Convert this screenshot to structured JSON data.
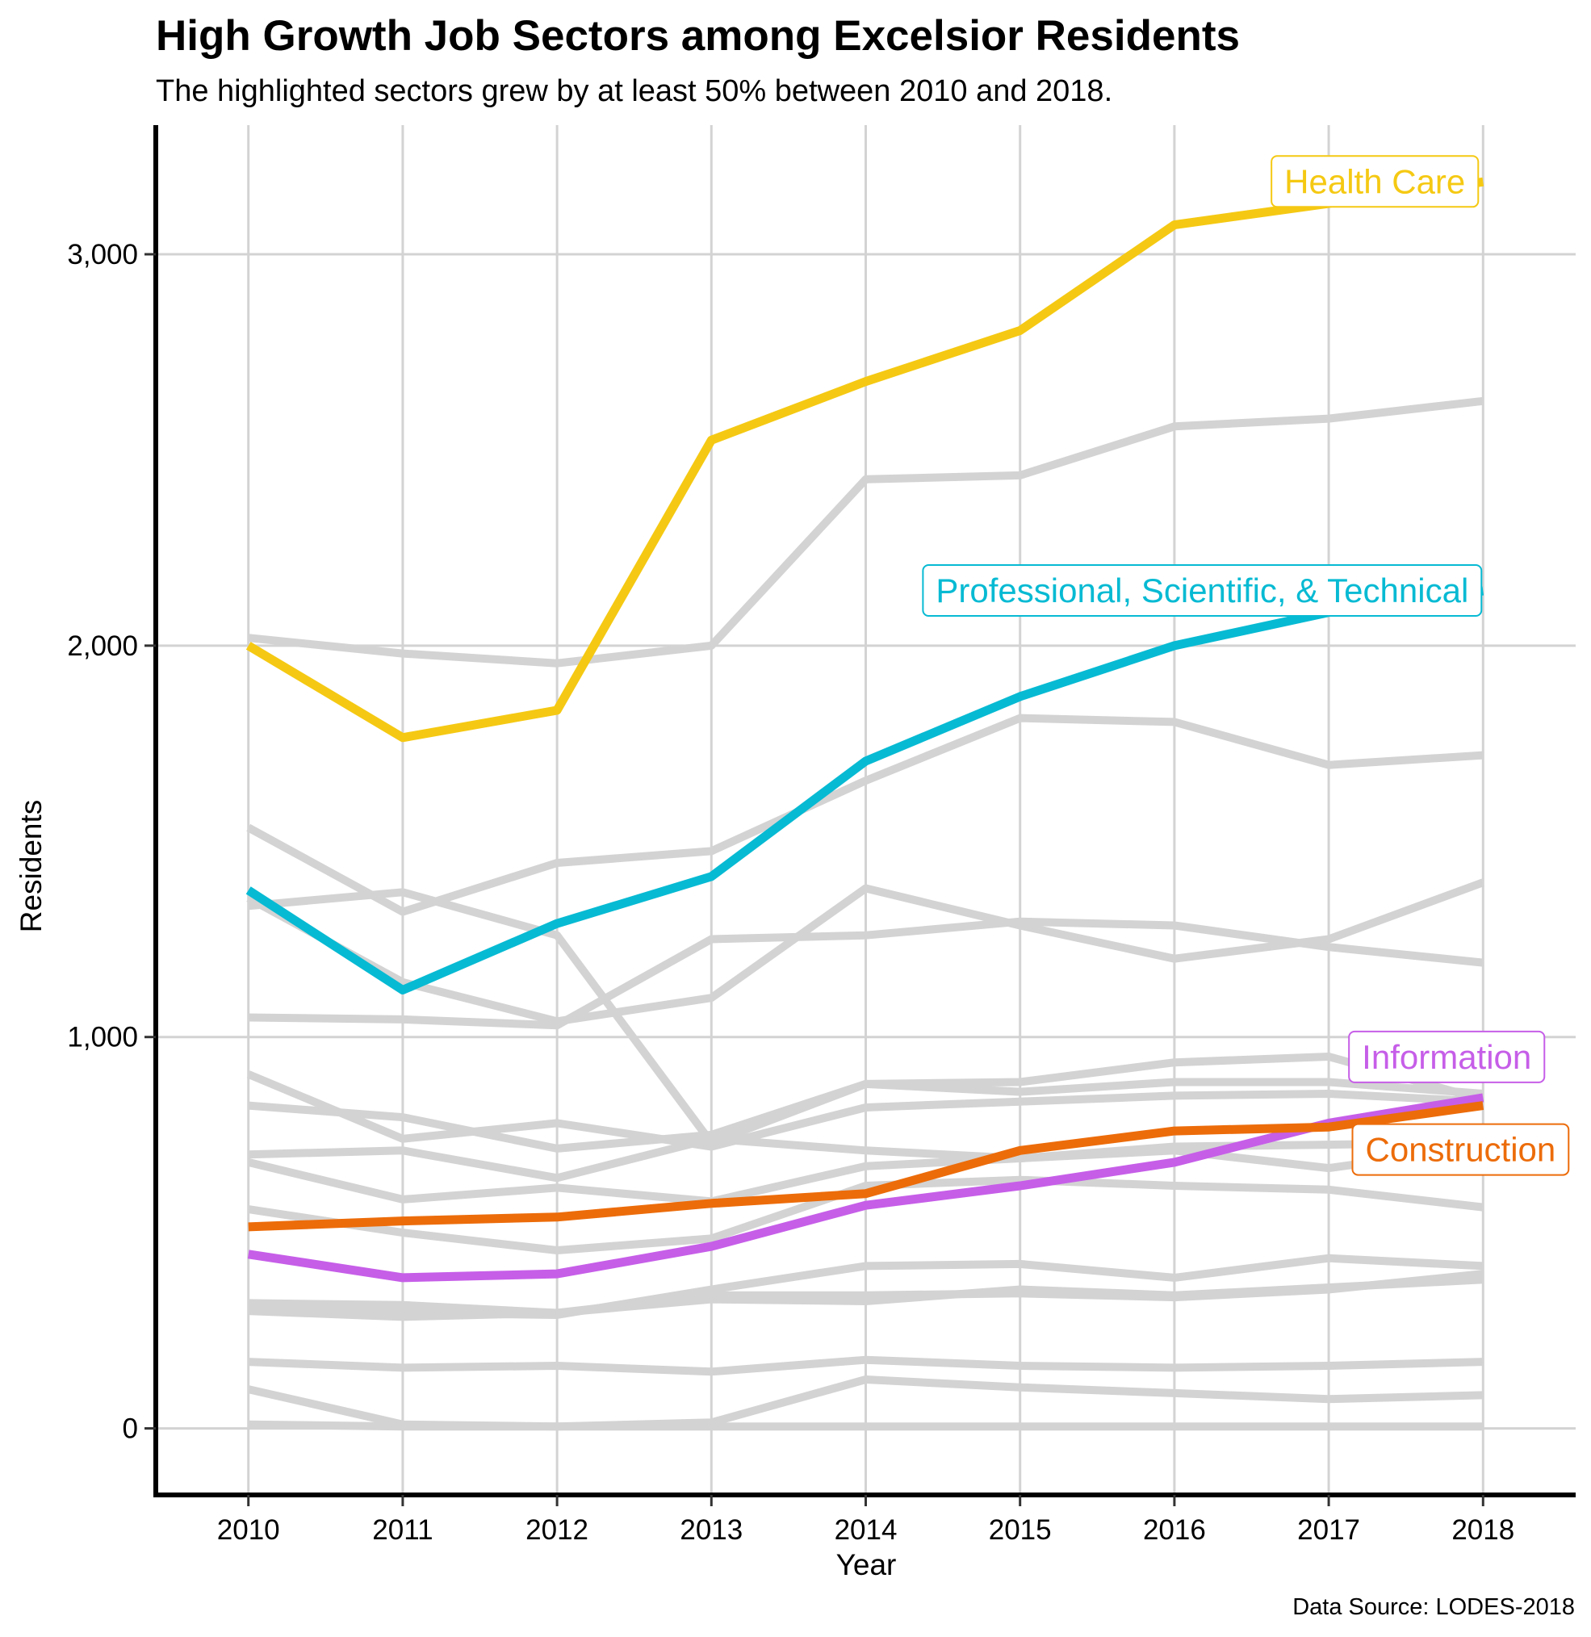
{
  "chart_data": {
    "type": "line",
    "title": "High Growth Job Sectors among Excelsior Residents",
    "subtitle": "The highlighted sectors grew by at least 50% between 2010 and 2018.",
    "caption": "Data Source: LODES-2018",
    "xlabel": "Year",
    "ylabel": "Residents",
    "x": [
      2010,
      2011,
      2012,
      2013,
      2014,
      2015,
      2016,
      2017,
      2018
    ],
    "xlim": [
      2009.4,
      2018.6
    ],
    "ylim": [
      -170,
      3330
    ],
    "y_ticks": [
      0,
      1000,
      2000,
      3000
    ],
    "y_tick_labels": [
      "0",
      "1,000",
      "2,000",
      "3,000"
    ],
    "grid": true,
    "colors": {
      "background_series": "#d3d3d3",
      "gridline": "#d3d3d3",
      "axis": "#000000"
    },
    "highlighted_series": [
      {
        "name": "Health Care",
        "color": "#f5c913",
        "values": [
          2000,
          1765,
          1835,
          2525,
          2675,
          2805,
          3075,
          3130,
          3185
        ]
      },
      {
        "name": "Professional, Scientific, & Technical",
        "color": "#07bad3",
        "values": [
          1375,
          1120,
          1290,
          1410,
          1705,
          1870,
          2000,
          2085,
          2140
        ]
      },
      {
        "name": "Information",
        "color": "#c65ee8",
        "values": [
          445,
          385,
          395,
          465,
          570,
          620,
          680,
          780,
          845
        ]
      },
      {
        "name": "Construction",
        "color": "#ec6c0a",
        "values": [
          515,
          530,
          540,
          575,
          600,
          710,
          760,
          770,
          825
        ]
      }
    ],
    "background_series": [
      {
        "values": [
          2020,
          1980,
          1955,
          2000,
          2425,
          2435,
          2560,
          2580,
          2625
        ]
      },
      {
        "values": [
          1535,
          1320,
          1445,
          1475,
          1655,
          1815,
          1805,
          1695,
          1720
        ]
      },
      {
        "values": [
          1335,
          1370,
          1260,
          730,
          880,
          885,
          935,
          950,
          840
        ]
      },
      {
        "values": [
          1355,
          1140,
          1040,
          1100,
          1380,
          1285,
          1200,
          1250,
          1395
        ]
      },
      {
        "values": [
          1050,
          1045,
          1030,
          1250,
          1260,
          1295,
          1285,
          1230,
          1190
        ]
      },
      {
        "values": [
          905,
          740,
          780,
          720,
          820,
          835,
          850,
          855,
          835
        ]
      },
      {
        "values": [
          825,
          795,
          715,
          750,
          880,
          860,
          885,
          885,
          855
        ]
      },
      {
        "values": [
          700,
          710,
          640,
          740,
          710,
          690,
          710,
          665,
          720
        ]
      },
      {
        "values": [
          680,
          585,
          615,
          580,
          670,
          690,
          720,
          725,
          730
        ]
      },
      {
        "values": [
          560,
          500,
          455,
          485,
          620,
          635,
          620,
          610,
          565
        ]
      },
      {
        "values": [
          310,
          295,
          290,
          355,
          415,
          420,
          385,
          435,
          415
        ]
      },
      {
        "values": [
          320,
          315,
          295,
          340,
          340,
          345,
          335,
          355,
          395
        ]
      },
      {
        "values": [
          300,
          285,
          295,
          330,
          325,
          355,
          340,
          360,
          380
        ]
      },
      {
        "values": [
          170,
          155,
          160,
          145,
          175,
          160,
          155,
          160,
          170
        ]
      },
      {
        "values": [
          100,
          10,
          5,
          15,
          125,
          105,
          90,
          75,
          85
        ]
      },
      {
        "values": [
          10,
          5,
          5,
          5,
          5,
          5,
          5,
          5,
          5
        ]
      }
    ]
  }
}
